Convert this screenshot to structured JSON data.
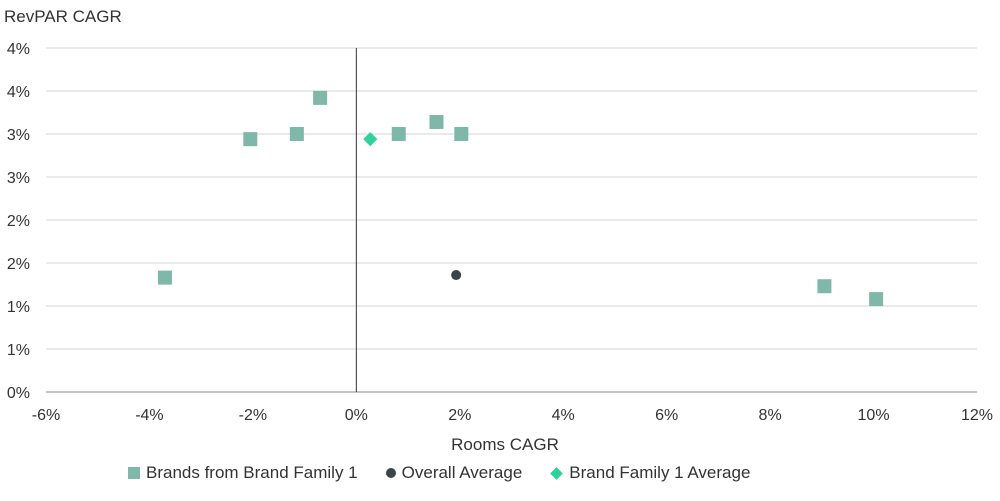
{
  "chart_data": {
    "type": "scatter",
    "title": "",
    "ylabel": "RevPAR CAGR",
    "xlabel": "Rooms CAGR",
    "xlim": [
      -6,
      12
    ],
    "ylim": [
      0,
      4
    ],
    "x_ticks": [
      -6,
      -4,
      -2,
      0,
      2,
      4,
      6,
      8,
      10,
      12
    ],
    "x_tick_labels": [
      "-6%",
      "-4%",
      "-2%",
      "0%",
      "2%",
      "4%",
      "6%",
      "8%",
      "10%",
      "12%"
    ],
    "y_ticks": [
      0,
      0.5,
      1,
      1.5,
      2,
      2.5,
      3,
      3.5,
      4
    ],
    "y_tick_labels": [
      "0%",
      "1%",
      "1%",
      "2%",
      "2%",
      "3%",
      "3%",
      "4%",
      "4%"
    ],
    "grid": "horizontal",
    "legend_position": "bottom",
    "series": [
      {
        "name": "Brands from Brand Family 1",
        "marker": "square",
        "color": "#7fb8a8",
        "points": [
          {
            "x": -3.7,
            "y": 1.33
          },
          {
            "x": -2.05,
            "y": 2.94
          },
          {
            "x": -1.15,
            "y": 3.0
          },
          {
            "x": -0.7,
            "y": 3.42
          },
          {
            "x": 0.82,
            "y": 3.0
          },
          {
            "x": 1.55,
            "y": 3.14
          },
          {
            "x": 2.03,
            "y": 3.0
          },
          {
            "x": 9.05,
            "y": 1.23
          },
          {
            "x": 10.05,
            "y": 1.08
          }
        ]
      },
      {
        "name": "Overall Average",
        "marker": "circle",
        "color": "#3a4449",
        "points": [
          {
            "x": 1.93,
            "y": 1.36
          }
        ]
      },
      {
        "name": "Brand Family 1 Average",
        "marker": "diamond",
        "color": "#2fd39a",
        "points": [
          {
            "x": 0.27,
            "y": 2.94
          }
        ]
      }
    ]
  }
}
